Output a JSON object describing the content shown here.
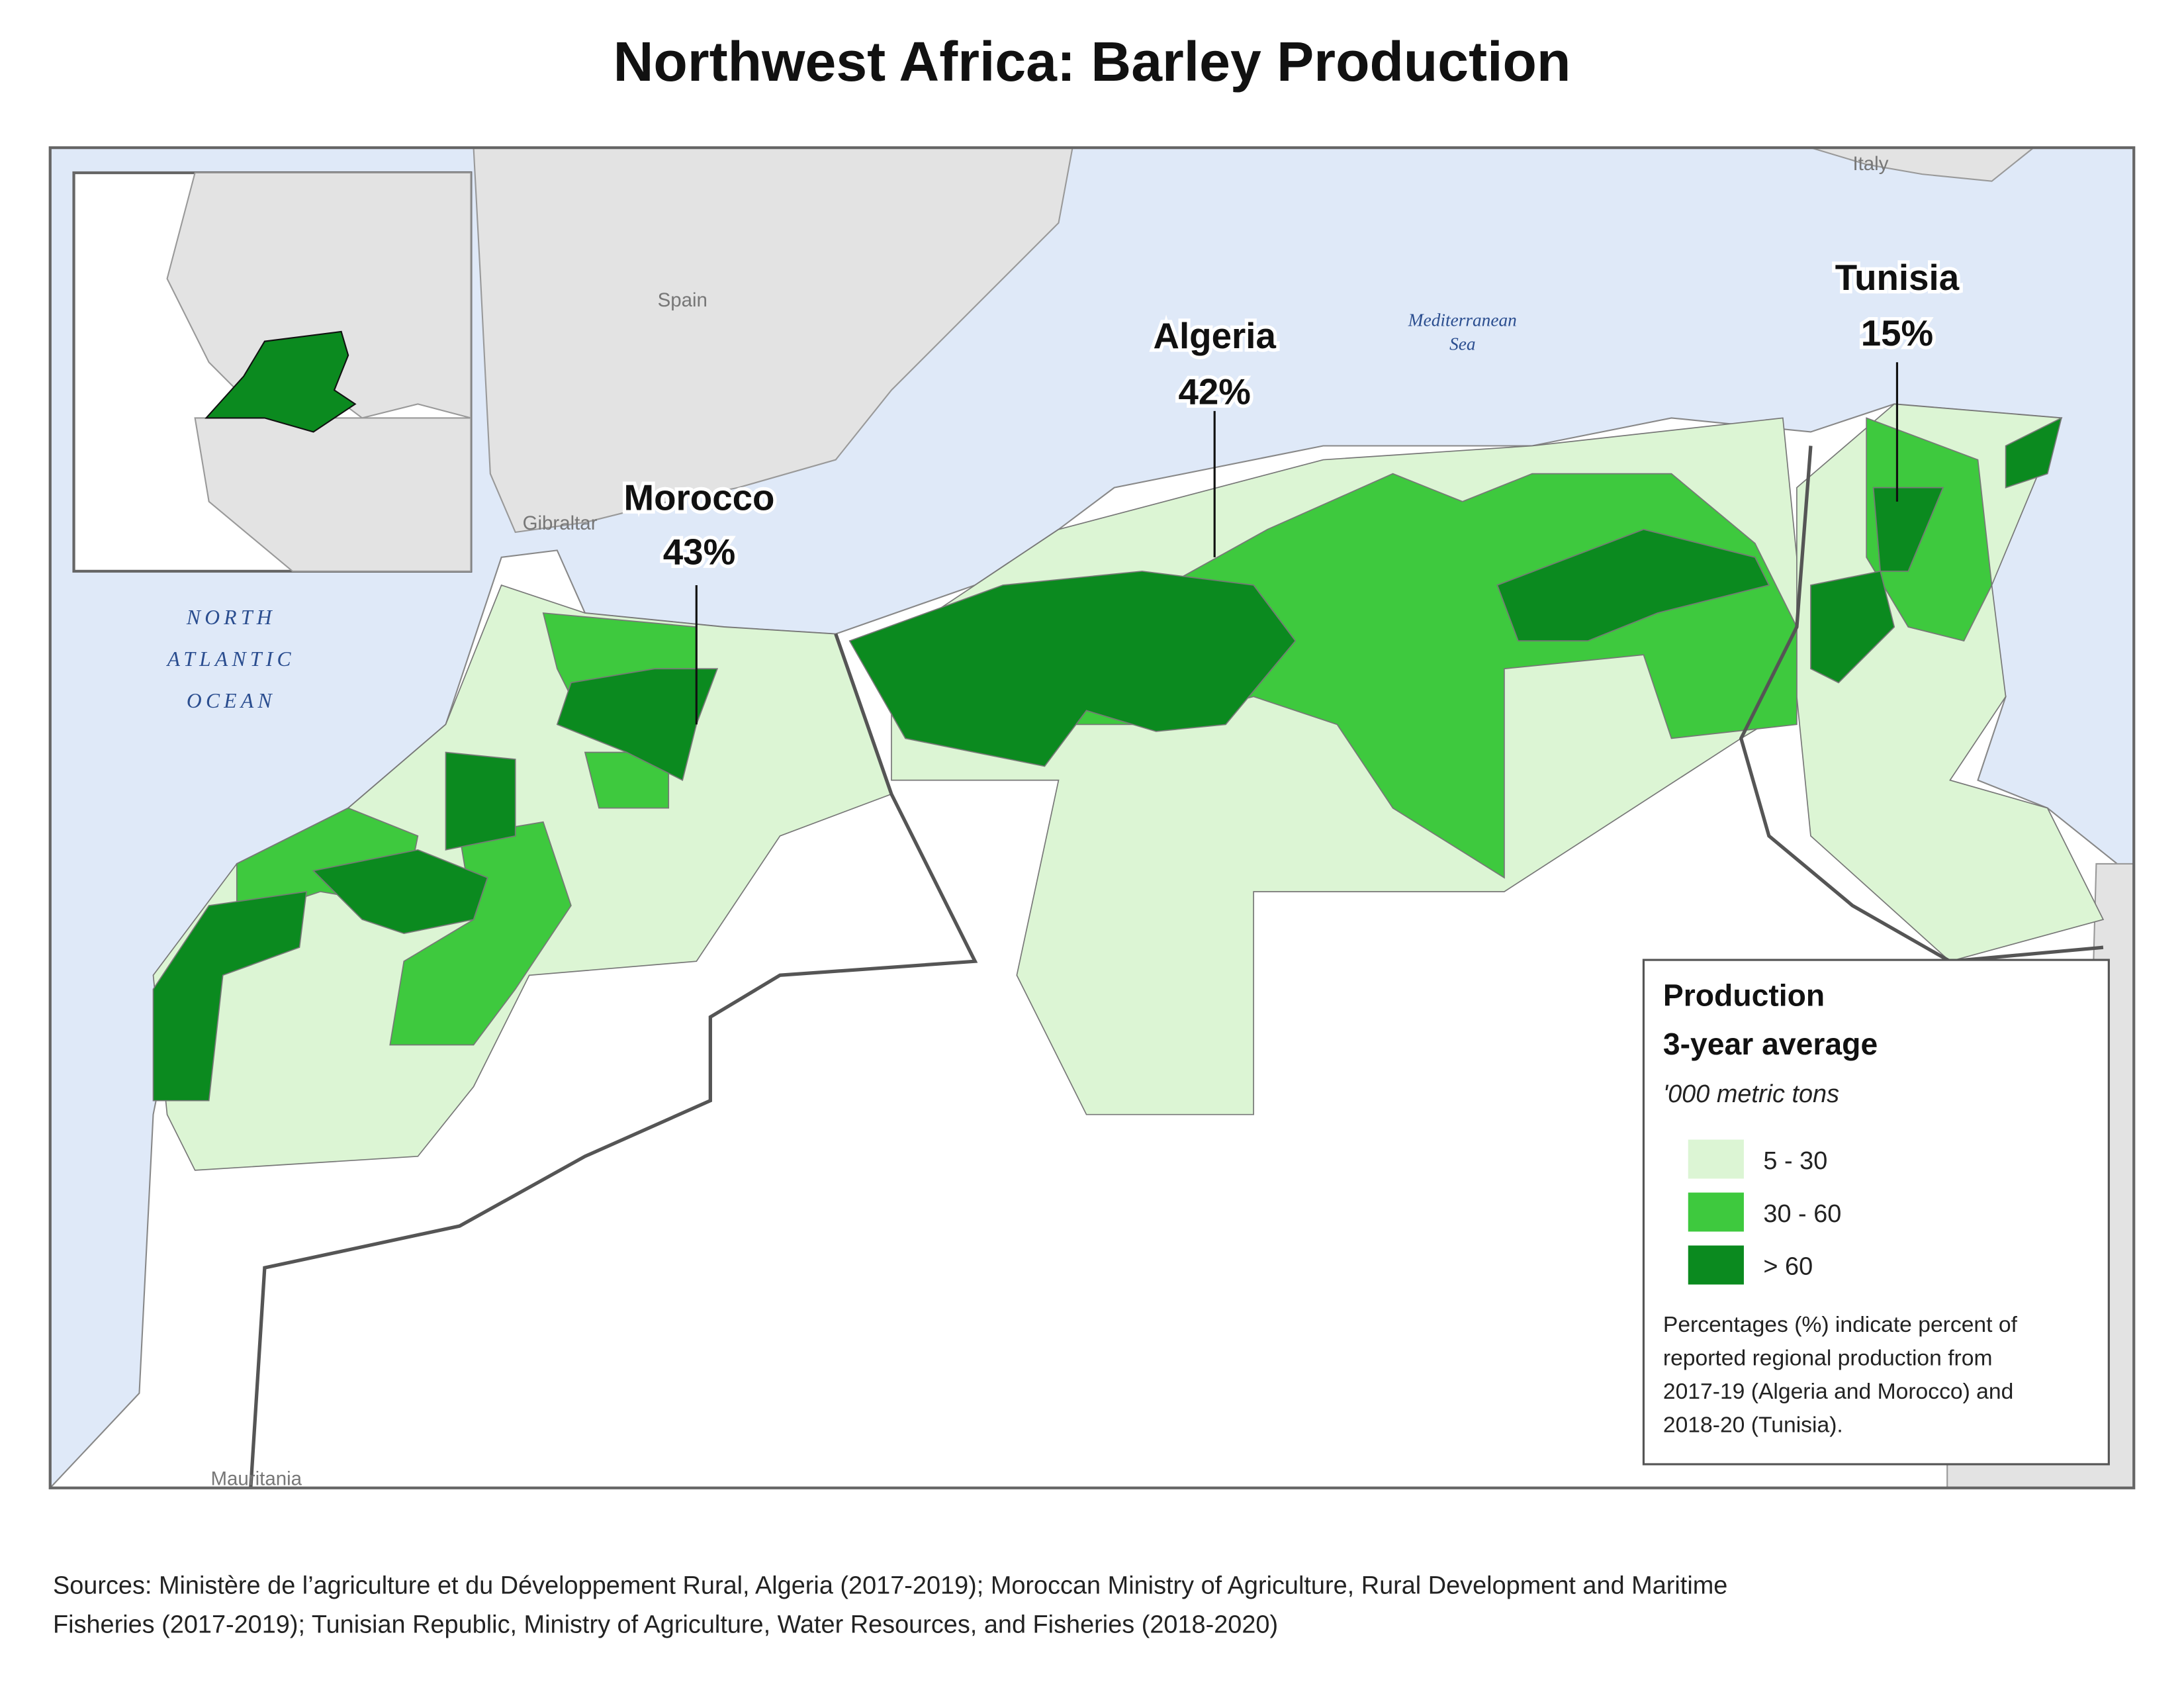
{
  "title": "Northwest Africa: Barley Production",
  "map_labels": {
    "spain": "Spain",
    "italy": "Italy",
    "gibraltar": "Gibraltar",
    "sea": [
      "Mediterranean",
      "Sea"
    ],
    "ocean": [
      "NORTH",
      "ATLANTIC",
      "OCEAN"
    ],
    "mauritania": "Mauritania"
  },
  "countries": [
    {
      "name": "Morocco",
      "share": "43%"
    },
    {
      "name": "Algeria",
      "share": "42%"
    },
    {
      "name": "Tunisia",
      "share": "15%"
    }
  ],
  "legend": {
    "title": "Production",
    "subtitle": "3-year average",
    "units": "'000 metric tons",
    "classes": [
      {
        "label": "5 - 30",
        "color": "#dcf5d4"
      },
      {
        "label": "30 - 60",
        "color": "#3ec93e"
      },
      {
        "label": "> 60",
        "color": "#0b8a1f"
      }
    ],
    "note": [
      "Percentages (%) indicate percent of",
      "reported regional production from",
      "2017-19 (Algeria and Morocco) and",
      "2018-20 (Tunisia)."
    ]
  },
  "sources": [
    "Sources: Ministère de l’agriculture et du Développement Rural, Algeria (2017-2019);  Moroccan Ministry of Agriculture, Rural Development and Maritime",
    "Fisheries (2017-2019); Tunisian Republic, Ministry of Agriculture, Water Resources, and Fisheries (2018-2020)"
  ]
}
